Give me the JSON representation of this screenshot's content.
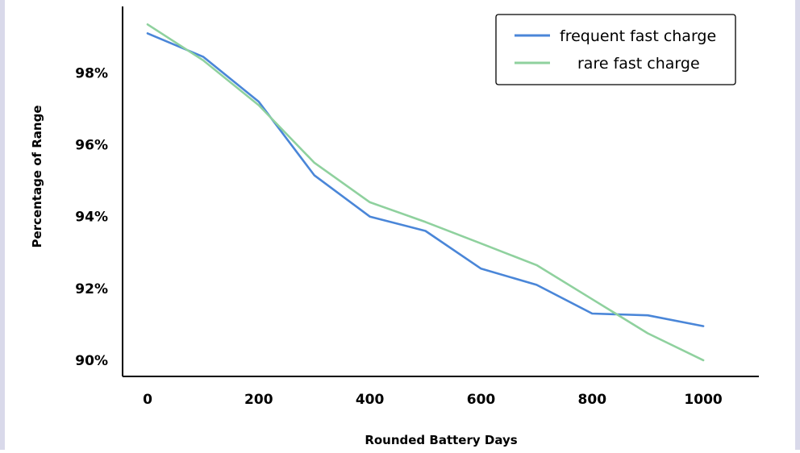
{
  "chart_data": {
    "type": "line",
    "title": "",
    "xlabel": "Rounded Battery Days",
    "ylabel": "Percentage of Range",
    "x": [
      0,
      100,
      200,
      300,
      400,
      500,
      600,
      700,
      800,
      900,
      1000
    ],
    "x_ticks": [
      0,
      200,
      400,
      600,
      800,
      1000
    ],
    "x_tick_labels": [
      "0",
      "200",
      "400",
      "600",
      "800",
      "1000"
    ],
    "y_ticks": [
      90,
      92,
      94,
      96,
      98
    ],
    "y_tick_labels": [
      "90%",
      "92%",
      "94%",
      "96%",
      "98%"
    ],
    "xlim": [
      -45,
      1100
    ],
    "ylim": [
      89.55,
      99.85
    ],
    "grid": false,
    "legend_position": "top-right",
    "series": [
      {
        "name": "frequent fast charge",
        "color": "#4a86d8",
        "values": [
          99.1,
          98.45,
          97.2,
          95.15,
          94.0,
          93.6,
          92.55,
          92.1,
          91.3,
          91.25,
          90.95
        ]
      },
      {
        "name": "rare fast charge",
        "color": "#8fd19e",
        "values": [
          99.35,
          98.35,
          97.1,
          95.5,
          94.4,
          93.85,
          93.25,
          92.65,
          91.7,
          90.75,
          90.0
        ]
      }
    ]
  }
}
